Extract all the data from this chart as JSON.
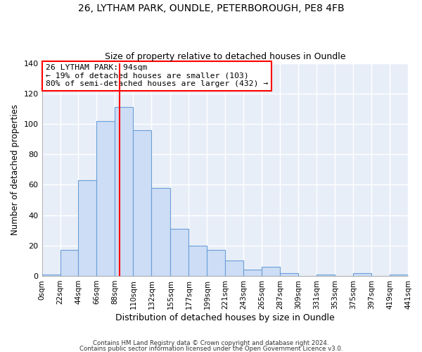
{
  "title1": "26, LYTHAM PARK, OUNDLE, PETERBOROUGH, PE8 4FB",
  "title2": "Size of property relative to detached houses in Oundle",
  "xlabel": "Distribution of detached houses by size in Oundle",
  "ylabel": "Number of detached properties",
  "bar_values": [
    1,
    17,
    63,
    102,
    111,
    96,
    58,
    31,
    20,
    17,
    10,
    4,
    6,
    2,
    0,
    1,
    0,
    2,
    0,
    1
  ],
  "bin_edges": [
    0,
    22,
    44,
    66,
    88,
    110,
    132,
    155,
    177,
    199,
    221,
    243,
    265,
    287,
    309,
    331,
    353,
    375,
    397,
    419,
    441
  ],
  "tick_labels": [
    "0sqm",
    "22sqm",
    "44sqm",
    "66sqm",
    "88sqm",
    "110sqm",
    "132sqm",
    "155sqm",
    "177sqm",
    "199sqm",
    "221sqm",
    "243sqm",
    "265sqm",
    "287sqm",
    "309sqm",
    "331sqm",
    "353sqm",
    "375sqm",
    "397sqm",
    "419sqm",
    "441sqm"
  ],
  "bar_color": "#ccddf5",
  "bar_edge_color": "#6a9fd8",
  "vline_x": 94,
  "vline_color": "red",
  "ylim": [
    0,
    140
  ],
  "yticks": [
    0,
    20,
    40,
    60,
    80,
    100,
    120,
    140
  ],
  "annotation_title": "26 LYTHAM PARK: 94sqm",
  "annotation_line1": "← 19% of detached houses are smaller (103)",
  "annotation_line2": "80% of semi-detached houses are larger (432) →",
  "annotation_box_color": "white",
  "annotation_box_edge_color": "red",
  "footer1": "Contains HM Land Registry data © Crown copyright and database right 2024.",
  "footer2": "Contains public sector information licensed under the Open Government Licence v3.0.",
  "background_color": "#ffffff",
  "plot_bg_color": "#e8eef8",
  "grid_color": "#ffffff"
}
